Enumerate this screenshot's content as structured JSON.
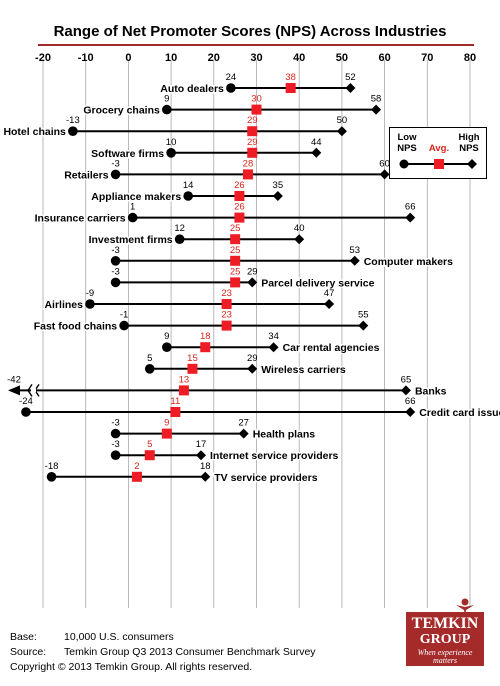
{
  "chart_data": {
    "type": "range",
    "title": "Range of Net Promoter Scores (NPS) Across Industries",
    "x_ticks": [
      -20,
      -10,
      0,
      10,
      20,
      30,
      40,
      50,
      60,
      70,
      80
    ],
    "xlim": [
      -20,
      80
    ],
    "grid": true,
    "legend": {
      "placement": "right",
      "low_label": "Low NPS",
      "avg_label": "Avg.",
      "high_label": "High NPS"
    },
    "colors": {
      "avg_marker": "#ee1c24",
      "avg_text": "#d9251c",
      "range_line": "#000000",
      "grid": "#a8a8a8",
      "accent_rule": "#a52a2a"
    },
    "rows": [
      {
        "industry": "Auto dealers",
        "low": 24,
        "avg": 38,
        "high": 52,
        "label_side": "left"
      },
      {
        "industry": "Grocery chains",
        "low": 9,
        "avg": 30,
        "high": 58,
        "label_side": "left"
      },
      {
        "industry": "Hotel chains",
        "low": -13,
        "avg": 29,
        "high": 50,
        "label_side": "left"
      },
      {
        "industry": "Software firms",
        "low": 10,
        "avg": 29,
        "high": 44,
        "label_side": "left"
      },
      {
        "industry": "Retailers",
        "low": -3,
        "avg": 28,
        "high": 60,
        "label_side": "left"
      },
      {
        "industry": "Appliance makers",
        "low": 14,
        "avg": 26,
        "high": 35,
        "label_side": "left"
      },
      {
        "industry": "Insurance carriers",
        "low": 1,
        "avg": 26,
        "high": 66,
        "label_side": "left"
      },
      {
        "industry": "Investment firms",
        "low": 12,
        "avg": 25,
        "high": 40,
        "label_side": "left"
      },
      {
        "industry": "Computer makers",
        "low": -3,
        "avg": 25,
        "high": 53,
        "label_side": "right"
      },
      {
        "industry": "Parcel delivery service",
        "low": -3,
        "avg": 25,
        "high": 29,
        "label_side": "right"
      },
      {
        "industry": "Airlines",
        "low": -9,
        "avg": 23,
        "high": 47,
        "label_side": "left"
      },
      {
        "industry": "Fast food chains",
        "low": -1,
        "avg": 23,
        "high": 55,
        "label_side": "left"
      },
      {
        "industry": "Car rental agencies",
        "low": 9,
        "avg": 18,
        "high": 34,
        "label_side": "right"
      },
      {
        "industry": "Wireless carriers",
        "low": 5,
        "avg": 15,
        "high": 29,
        "label_side": "right"
      },
      {
        "industry": "Banks",
        "low": -42,
        "avg": 13,
        "high": 65,
        "label_side": "right",
        "axis_break": true
      },
      {
        "industry": "Credit card issuers",
        "low": -24,
        "avg": 11,
        "high": 66,
        "label_side": "right"
      },
      {
        "industry": "Health plans",
        "low": -3,
        "avg": 9,
        "high": 27,
        "label_side": "right"
      },
      {
        "industry": "Internet service providers",
        "low": -3,
        "avg": 5,
        "high": 17,
        "label_side": "right"
      },
      {
        "industry": "TV service providers",
        "low": -18,
        "avg": 2,
        "high": 18,
        "label_side": "right"
      }
    ]
  },
  "footer": {
    "base_label": "Base:",
    "base_value": "10,000 U.S. consumers",
    "source_label": "Source:",
    "source_value": "Temkin Group Q3 2013 Consumer Benchmark Survey",
    "copyright": "Copyright © 2013 Temkin Group. All rights reserved."
  },
  "logo": {
    "line1": "TEMKIN",
    "line2": "GROUP",
    "tagline": "When experience matters",
    "background": "#a52a2a"
  }
}
